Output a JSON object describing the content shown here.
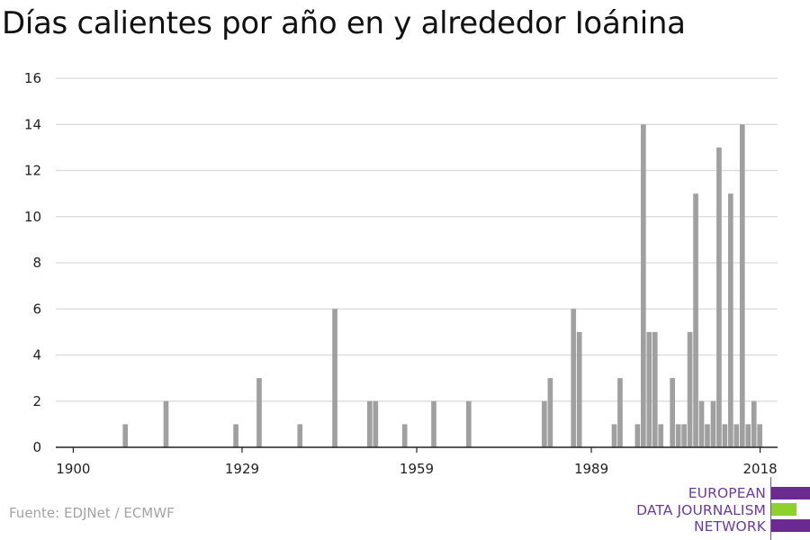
{
  "title": "Días calientes por año en y alrededor Ioánina",
  "source": "Fuente: EDJNet / ECMWF",
  "logo": {
    "lines": [
      "European",
      "Data Journalism",
      "Network"
    ],
    "colors": {
      "purple": "#6a2a8f",
      "green": "#8dd12a"
    }
  },
  "colors": {
    "bar": "#a0a0a0",
    "grid": "#d9d9d9",
    "axis": "#222222",
    "text": "#222222"
  },
  "chart_data": {
    "type": "bar",
    "title": "Días calientes por año en y alrededor Ioánina",
    "xlabel": "",
    "ylabel": "",
    "xlim": [
      1897,
      2021
    ],
    "ylim": [
      0,
      16
    ],
    "yticks": [
      0,
      2,
      4,
      6,
      8,
      10,
      12,
      14,
      16
    ],
    "xticks": [
      1900,
      1929,
      1959,
      1989,
      2018
    ],
    "grid": true,
    "x": [
      1909,
      1916,
      1928,
      1932,
      1939,
      1945,
      1951,
      1952,
      1957,
      1962,
      1968,
      1981,
      1982,
      1986,
      1987,
      1993,
      1994,
      1997,
      1998,
      1999,
      2000,
      2001,
      2003,
      2004,
      2005,
      2006,
      2007,
      2008,
      2009,
      2010,
      2011,
      2012,
      2013,
      2014,
      2015,
      2016,
      2017,
      2018
    ],
    "values": [
      1,
      2,
      1,
      3,
      1,
      6,
      2,
      2,
      1,
      2,
      2,
      2,
      3,
      6,
      5,
      1,
      3,
      1,
      14,
      5,
      5,
      1,
      3,
      1,
      1,
      5,
      11,
      2,
      1,
      2,
      13,
      1,
      11,
      1,
      14,
      1,
      2,
      1
    ]
  }
}
